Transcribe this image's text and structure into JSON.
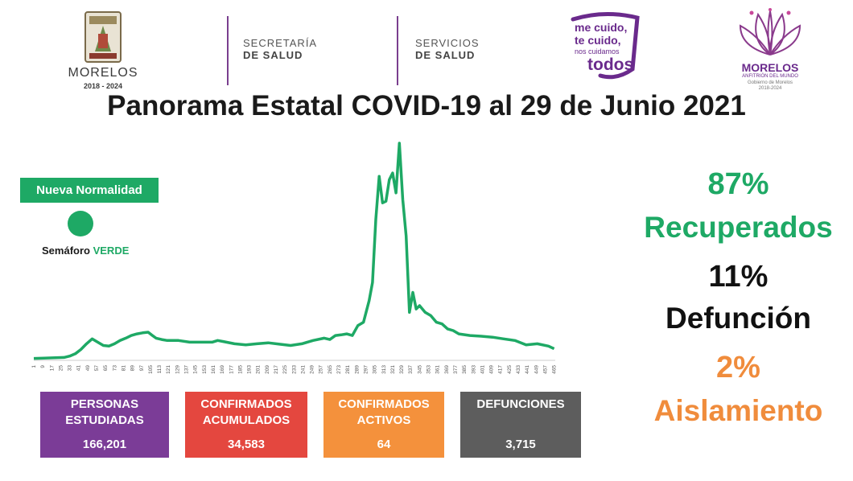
{
  "header": {
    "morelos_logo": {
      "name": "MORELOS",
      "years": "2018 - 2024"
    },
    "dept1": {
      "line1": "SECRETARÍA",
      "line2": "DE SALUD"
    },
    "dept2": {
      "line1": "SERVICIOS",
      "line2": "DE SALUD"
    },
    "campaign": {
      "line1": "me cuido,",
      "line2": "te cuido,",
      "line3": "nos cuidamos",
      "line4": "todos"
    },
    "anfitrion_logo": {
      "name": "MORELOS",
      "tagline": "ANFITRIÓN DEL MUNDO",
      "sub": "Gobierno de Morelos",
      "years": "2018-2024"
    }
  },
  "title": "Panorama Estatal COVID-19 al 29 de Junio 2021",
  "semaforo": {
    "badge": "Nueva Normalidad",
    "label": "Semáforo",
    "status": "VERDE",
    "color": "#1ea965"
  },
  "stats": [
    {
      "pct": "87%",
      "label": "Recuperados",
      "color": "#1ea965"
    },
    {
      "pct": "11%",
      "label": "Defunción",
      "color": "#111111"
    },
    {
      "pct": "2%",
      "label": "Aislamiento",
      "color": "#f08c3c"
    }
  ],
  "cards": [
    {
      "label": "PERSONAS ESTUDIADAS",
      "value": "166,201",
      "color": "#7b3c97"
    },
    {
      "label": "CONFIRMADOS ACUMULADOS",
      "value": "34,583",
      "color": "#e4473f"
    },
    {
      "label": "CONFIRMADOS ACTIVOS",
      "value": "64",
      "color": "#f4913c"
    },
    {
      "label": "DEFUNCIONES",
      "value": "3,715",
      "color": "#5d5d5d"
    }
  ],
  "chart_data": {
    "type": "line",
    "title": "",
    "xlabel": "",
    "ylabel": "",
    "line_color": "#1ea965",
    "grid": false,
    "x_ticks": [
      1,
      9,
      17,
      25,
      33,
      41,
      49,
      57,
      65,
      73,
      81,
      89,
      97,
      105,
      113,
      121,
      129,
      137,
      145,
      153,
      161,
      169,
      177,
      185,
      193,
      201,
      209,
      217,
      225,
      233,
      241,
      249,
      257,
      265,
      273,
      281,
      289,
      297,
      305,
      313,
      321,
      329,
      337,
      345,
      353,
      361,
      369,
      377,
      385,
      393,
      401,
      409,
      417,
      425,
      433,
      441,
      449,
      457,
      465
    ],
    "x": [
      1,
      10,
      20,
      28,
      33,
      38,
      43,
      48,
      53,
      58,
      63,
      68,
      73,
      78,
      83,
      88,
      93,
      98,
      103,
      106,
      110,
      115,
      120,
      130,
      140,
      150,
      160,
      165,
      170,
      180,
      190,
      200,
      210,
      220,
      230,
      240,
      250,
      260,
      265,
      270,
      275,
      280,
      285,
      290,
      295,
      300,
      303,
      306,
      309,
      312,
      315,
      318,
      321,
      324,
      327,
      330,
      333,
      336,
      339,
      342,
      345,
      350,
      355,
      360,
      365,
      370,
      375,
      380,
      390,
      400,
      410,
      420,
      430,
      440,
      450,
      460,
      465
    ],
    "y": [
      1,
      2,
      3,
      4,
      8,
      15,
      28,
      45,
      60,
      50,
      40,
      38,
      45,
      55,
      62,
      70,
      75,
      78,
      80,
      72,
      62,
      58,
      55,
      55,
      50,
      50,
      50,
      55,
      52,
      45,
      42,
      45,
      48,
      44,
      40,
      45,
      55,
      62,
      58,
      70,
      72,
      75,
      70,
      100,
      110,
      175,
      230,
      420,
      550,
      470,
      475,
      540,
      560,
      500,
      650,
      480,
      370,
      140,
      200,
      150,
      160,
      140,
      130,
      110,
      105,
      90,
      85,
      75,
      70,
      68,
      65,
      60,
      55,
      42,
      45,
      38,
      30
    ]
  }
}
